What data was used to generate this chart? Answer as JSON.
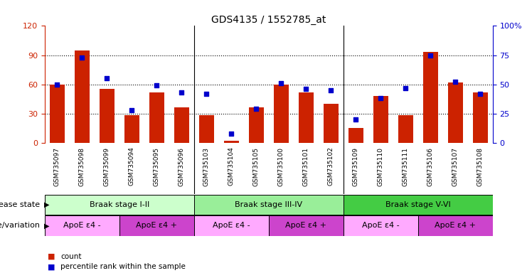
{
  "title": "GDS4135 / 1552785_at",
  "samples": [
    "GSM735097",
    "GSM735098",
    "GSM735099",
    "GSM735094",
    "GSM735095",
    "GSM735096",
    "GSM735103",
    "GSM735104",
    "GSM735105",
    "GSM735100",
    "GSM735101",
    "GSM735102",
    "GSM735109",
    "GSM735110",
    "GSM735111",
    "GSM735106",
    "GSM735107",
    "GSM735108"
  ],
  "counts": [
    60,
    95,
    55,
    28,
    52,
    36,
    28,
    2,
    36,
    60,
    52,
    40,
    15,
    48,
    28,
    93,
    62,
    52
  ],
  "percentiles": [
    50,
    73,
    55,
    28,
    49,
    43,
    42,
    8,
    29,
    51,
    46,
    45,
    20,
    38,
    47,
    75,
    52,
    42
  ],
  "ylim_left": [
    0,
    120
  ],
  "ylim_right": [
    0,
    100
  ],
  "yticks_left": [
    0,
    30,
    60,
    90,
    120
  ],
  "ytick_labels_left": [
    "0",
    "30",
    "60",
    "90",
    "120"
  ],
  "yticks_right": [
    0,
    25,
    50,
    75,
    100
  ],
  "ytick_labels_right": [
    "0",
    "25",
    "50",
    "75",
    "100%"
  ],
  "bar_color": "#cc2200",
  "dot_color": "#0000cc",
  "disease_groups": [
    {
      "label": "Braak stage I-II",
      "start": 0,
      "end": 6,
      "color": "#ccffcc"
    },
    {
      "label": "Braak stage III-IV",
      "start": 6,
      "end": 12,
      "color": "#99ee99"
    },
    {
      "label": "Braak stage V-VI",
      "start": 12,
      "end": 18,
      "color": "#44cc44"
    }
  ],
  "genotype_groups": [
    {
      "label": "ApoE ε4 -",
      "start": 0,
      "end": 3,
      "color": "#ffaaff"
    },
    {
      "label": "ApoE ε4 +",
      "start": 3,
      "end": 6,
      "color": "#cc44cc"
    },
    {
      "label": "ApoE ε4 -",
      "start": 6,
      "end": 9,
      "color": "#ffaaff"
    },
    {
      "label": "ApoE ε4 +",
      "start": 9,
      "end": 12,
      "color": "#cc44cc"
    },
    {
      "label": "ApoE ε4 -",
      "start": 12,
      "end": 15,
      "color": "#ffaaff"
    },
    {
      "label": "ApoE ε4 +",
      "start": 15,
      "end": 18,
      "color": "#cc44cc"
    }
  ],
  "legend_count_label": "count",
  "legend_pct_label": "percentile rank within the sample",
  "disease_state_label": "disease state",
  "genotype_label": "genotype/variation",
  "xtick_bg_color": "#d0d0d0",
  "bg_color": "#ffffff",
  "tick_label_color_left": "#cc2200",
  "tick_label_color_right": "#0000cc"
}
